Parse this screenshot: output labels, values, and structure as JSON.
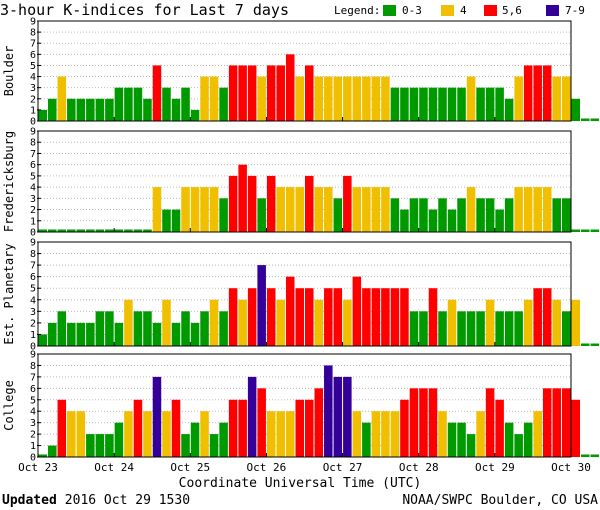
{
  "chart_data": {
    "type": "bar",
    "title": "3-hour K-indices for Last 7 days",
    "legend": {
      "title": "Legend:",
      "entries": [
        {
          "label": "0-3",
          "color": "#009900"
        },
        {
          "label": "4",
          "color": "#f0c000"
        },
        {
          "label": "5,6",
          "color": "#ff0000"
        },
        {
          "label": "7-9",
          "color": "#330099"
        }
      ]
    },
    "xlabel": "Coordinate Universal Time (UTC)",
    "x_ticks": [
      "Oct 23",
      "Oct 24",
      "Oct 25",
      "Oct 26",
      "Oct 27",
      "Oct 28",
      "Oct 29",
      "Oct 30"
    ],
    "yticks": [
      "0",
      "1",
      "2",
      "3",
      "4",
      "5",
      "6",
      "7",
      "8",
      "9"
    ],
    "ylim": [
      0,
      9
    ],
    "bars_per_day": 8,
    "grid": true,
    "series": [
      {
        "name": "Boulder",
        "values": [
          1,
          2,
          4,
          2,
          2,
          2,
          2,
          2,
          3,
          3,
          3,
          2,
          5,
          3,
          2,
          3,
          1,
          4,
          4,
          3,
          5,
          5,
          5,
          4,
          5,
          5,
          6,
          4,
          5,
          4,
          4,
          4,
          4,
          4,
          4,
          4,
          4,
          3,
          3,
          3,
          3,
          3,
          3,
          3,
          3,
          4,
          3,
          3,
          3,
          2,
          4,
          5,
          5,
          5,
          4,
          4,
          2,
          0,
          0,
          0
        ]
      },
      {
        "name": "Fredericksburg",
        "values": [
          0,
          0,
          0,
          0,
          0,
          0,
          0,
          0,
          0,
          0,
          0,
          0,
          4,
          2,
          2,
          4,
          4,
          4,
          4,
          3,
          5,
          6,
          5,
          3,
          5,
          4,
          4,
          4,
          5,
          4,
          4,
          3,
          5,
          4,
          4,
          4,
          4,
          3,
          2,
          3,
          3,
          2,
          3,
          2,
          3,
          4,
          3,
          3,
          2,
          3,
          4,
          4,
          4,
          4,
          3,
          3,
          0,
          0,
          0,
          0
        ]
      },
      {
        "name": "Est. Planetary",
        "values": [
          1,
          2,
          3,
          2,
          2,
          2,
          3,
          3,
          2,
          4,
          3,
          3,
          2,
          4,
          2,
          3,
          2,
          3,
          4,
          3,
          5,
          4,
          5,
          7,
          5,
          4,
          6,
          5,
          5,
          4,
          5,
          5,
          4,
          6,
          5,
          5,
          5,
          5,
          5,
          3,
          3,
          5,
          3,
          4,
          3,
          3,
          3,
          4,
          3,
          3,
          3,
          4,
          5,
          5,
          4,
          3,
          4,
          0,
          0,
          0
        ]
      },
      {
        "name": "College",
        "values": [
          0,
          1,
          5,
          4,
          4,
          2,
          2,
          2,
          3,
          4,
          5,
          4,
          7,
          4,
          5,
          2,
          3,
          4,
          2,
          3,
          5,
          5,
          7,
          6,
          4,
          4,
          4,
          5,
          5,
          6,
          8,
          7,
          7,
          4,
          3,
          4,
          4,
          4,
          5,
          6,
          6,
          6,
          4,
          3,
          3,
          2,
          4,
          6,
          5,
          3,
          2,
          3,
          4,
          6,
          6,
          6,
          5,
          0,
          0,
          0
        ]
      }
    ]
  },
  "footer": {
    "updated_label": "Updated",
    "updated_value": "2016 Oct 29 1530",
    "credit": "NOAA/SWPC Boulder, CO USA"
  }
}
